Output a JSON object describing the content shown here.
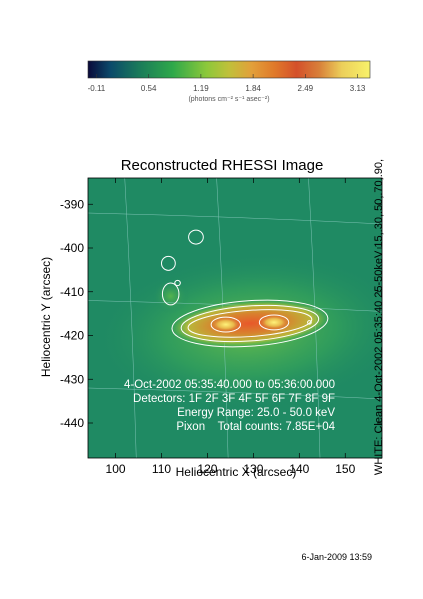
{
  "chart_data": {
    "type": "heatmap",
    "title": "Reconstructed RHESSI Image",
    "xlabel": "Heliocentric X (arcsec)",
    "ylabel": "Heliocentric Y (arcsec)",
    "xlim": [
      94,
      158
    ],
    "ylim": [
      -448,
      -384
    ],
    "x_ticks": [
      100,
      110,
      120,
      130,
      140,
      150
    ],
    "y_ticks": [
      -390,
      -400,
      -410,
      -420,
      -430,
      -440
    ],
    "grid": true,
    "colorbar": {
      "ticks": [
        "-0.11",
        "0.54",
        "1.19",
        "1.84",
        "2.49",
        "3.13"
      ],
      "range": [
        -0.11,
        3.13
      ],
      "unit_label": "(photons cm⁻² s⁻¹ asec⁻²)",
      "colors": [
        "#0a0a3a",
        "#0b4a6a",
        "#1a7a5a",
        "#2ea84a",
        "#7cc83a",
        "#b8d43a",
        "#e2b23a",
        "#e07a2a",
        "#cc3a1e",
        "#e8c85a",
        "#f8f06a"
      ]
    },
    "sources": [
      {
        "x": 124,
        "y": -417.5,
        "peak": 3.13
      },
      {
        "x": 134.5,
        "y": -417,
        "peak": 2.9
      }
    ],
    "annotations": [
      "4-Oct-2002 05:35:40.000 to 05:36:00.000",
      "Detectors: 1F 2F 3F 4F 5F 6F 7F 8F 9F",
      "Energy Range: 25.0 - 50.0 keV",
      "Pixon    Total counts: 7.85E+04"
    ],
    "contour_note": "WHITE: Clean  4-Oct-2002 05:35:40 25-50keV 15,.30,.50,.70,.90,"
  },
  "timestamp": "6-Jan-2009 13:59"
}
